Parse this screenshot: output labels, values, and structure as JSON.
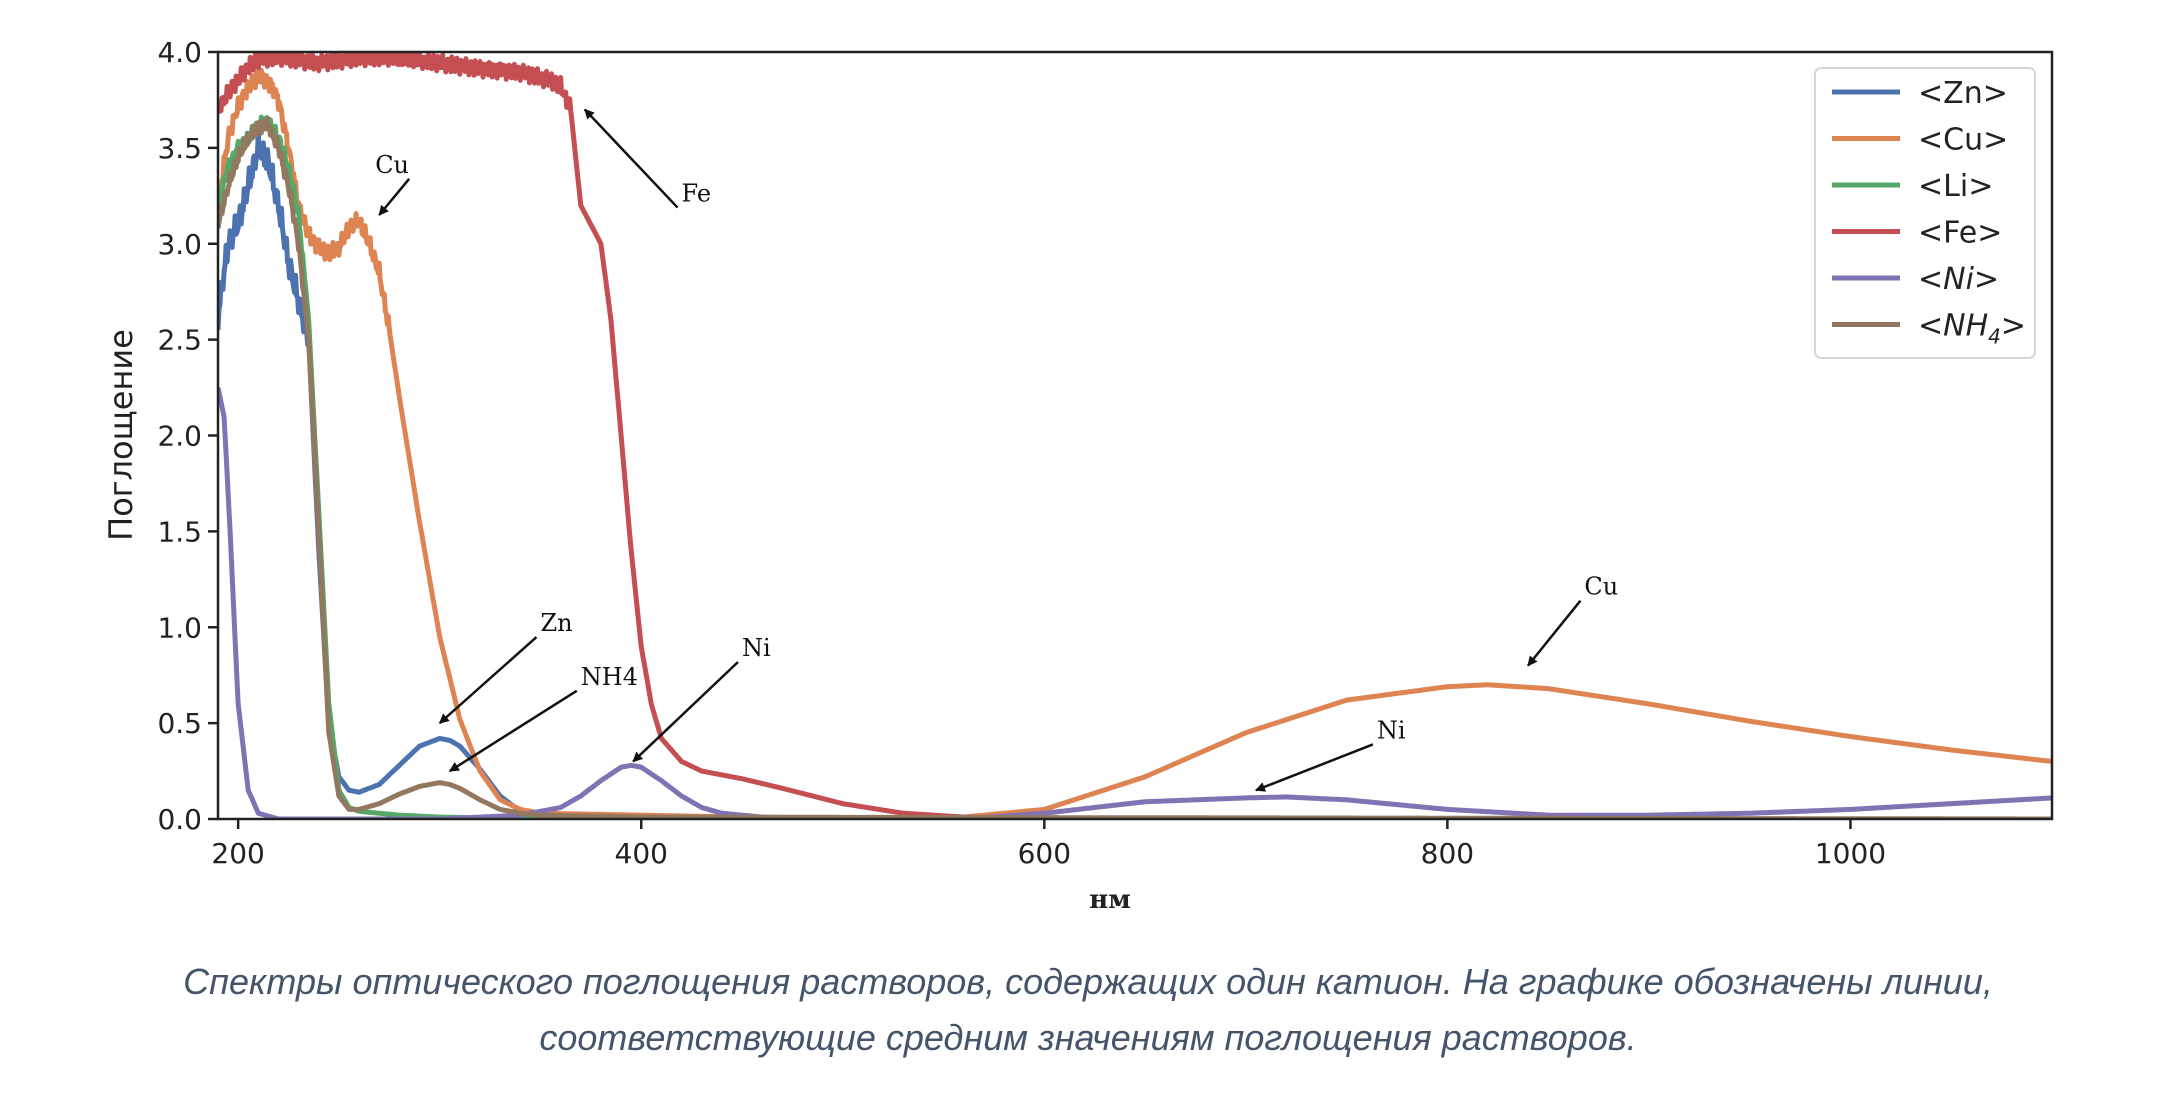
{
  "chart_data": {
    "type": "line",
    "title": "",
    "xlabel": "нм",
    "ylabel": "Поглощение",
    "xlim": [
      190,
      1100
    ],
    "ylim": [
      0,
      4.0
    ],
    "xticks": [
      200,
      400,
      600,
      800,
      1000
    ],
    "yticks": [
      0.0,
      0.5,
      1.0,
      1.5,
      2.0,
      2.5,
      3.0,
      3.5,
      4.0
    ],
    "ytick_labels": [
      "0.0",
      "0.5",
      "1.0",
      "1.5",
      "2.0",
      "2.5",
      "3.0",
      "3.5",
      "4.0"
    ],
    "grid": false,
    "legend": "top-right",
    "series": [
      {
        "name": "<Zn>",
        "legend_main": "Zn",
        "legend_sub": "",
        "italic": false,
        "color": "#4c72b0",
        "noise": {
          "amp": 0.08,
          "from": 190,
          "to": 235
        },
        "points": [
          [
            190,
            2.62
          ],
          [
            195,
            3.0
          ],
          [
            200,
            3.1
          ],
          [
            205,
            3.3
          ],
          [
            210,
            3.5
          ],
          [
            215,
            3.42
          ],
          [
            220,
            3.2
          ],
          [
            225,
            2.9
          ],
          [
            230,
            2.7
          ],
          [
            235,
            2.5
          ],
          [
            240,
            1.4
          ],
          [
            245,
            0.5
          ],
          [
            250,
            0.22
          ],
          [
            255,
            0.15
          ],
          [
            260,
            0.14
          ],
          [
            270,
            0.18
          ],
          [
            280,
            0.28
          ],
          [
            290,
            0.38
          ],
          [
            300,
            0.42
          ],
          [
            305,
            0.41
          ],
          [
            310,
            0.38
          ],
          [
            320,
            0.26
          ],
          [
            330,
            0.12
          ],
          [
            340,
            0.04
          ],
          [
            350,
            0.01
          ],
          [
            360,
            0.0
          ],
          [
            1100,
            0.0
          ]
        ]
      },
      {
        "name": "<Cu>",
        "legend_main": "Cu",
        "legend_sub": "",
        "italic": false,
        "color": "#dd8452",
        "noise": {
          "amp": 0.05,
          "from": 190,
          "to": 275
        },
        "points": [
          [
            190,
            3.2
          ],
          [
            195,
            3.55
          ],
          [
            200,
            3.72
          ],
          [
            205,
            3.82
          ],
          [
            210,
            3.88
          ],
          [
            215,
            3.85
          ],
          [
            220,
            3.75
          ],
          [
            225,
            3.5
          ],
          [
            230,
            3.2
          ],
          [
            235,
            3.05
          ],
          [
            240,
            2.98
          ],
          [
            245,
            2.95
          ],
          [
            250,
            2.98
          ],
          [
            255,
            3.08
          ],
          [
            260,
            3.12
          ],
          [
            265,
            3.0
          ],
          [
            270,
            2.85
          ],
          [
            275,
            2.55
          ],
          [
            280,
            2.2
          ],
          [
            290,
            1.55
          ],
          [
            300,
            0.95
          ],
          [
            310,
            0.52
          ],
          [
            320,
            0.25
          ],
          [
            330,
            0.1
          ],
          [
            340,
            0.05
          ],
          [
            350,
            0.03
          ],
          [
            400,
            0.02
          ],
          [
            450,
            0.01
          ],
          [
            500,
            0.0
          ],
          [
            550,
            0.0
          ],
          [
            600,
            0.05
          ],
          [
            650,
            0.22
          ],
          [
            700,
            0.45
          ],
          [
            750,
            0.62
          ],
          [
            800,
            0.69
          ],
          [
            820,
            0.7
          ],
          [
            850,
            0.68
          ],
          [
            900,
            0.6
          ],
          [
            950,
            0.51
          ],
          [
            1000,
            0.43
          ],
          [
            1050,
            0.36
          ],
          [
            1100,
            0.3
          ]
        ]
      },
      {
        "name": "<Li>",
        "legend_main": "Li",
        "legend_sub": "",
        "italic": false,
        "color": "#55a868",
        "noise": {
          "amp": 0.04,
          "from": 190,
          "to": 232
        },
        "points": [
          [
            190,
            3.2
          ],
          [
            195,
            3.4
          ],
          [
            200,
            3.5
          ],
          [
            205,
            3.55
          ],
          [
            210,
            3.62
          ],
          [
            215,
            3.63
          ],
          [
            220,
            3.55
          ],
          [
            225,
            3.4
          ],
          [
            230,
            3.15
          ],
          [
            235,
            2.6
          ],
          [
            240,
            1.6
          ],
          [
            245,
            0.6
          ],
          [
            250,
            0.15
          ],
          [
            255,
            0.06
          ],
          [
            260,
            0.04
          ],
          [
            270,
            0.03
          ],
          [
            280,
            0.02
          ],
          [
            300,
            0.01
          ],
          [
            350,
            0.0
          ],
          [
            1100,
            0.0
          ]
        ]
      },
      {
        "name": "<Fe>",
        "legend_main": "Fe",
        "legend_sub": "",
        "italic": false,
        "color": "#c44e52",
        "noise": {
          "amp": 0.05,
          "from": 190,
          "to": 365
        },
        "points": [
          [
            190,
            3.7
          ],
          [
            195,
            3.78
          ],
          [
            200,
            3.85
          ],
          [
            205,
            3.92
          ],
          [
            210,
            3.96
          ],
          [
            220,
            3.98
          ],
          [
            240,
            3.95
          ],
          [
            260,
            3.97
          ],
          [
            280,
            3.96
          ],
          [
            300,
            3.94
          ],
          [
            320,
            3.92
          ],
          [
            340,
            3.9
          ],
          [
            355,
            3.85
          ],
          [
            360,
            3.82
          ],
          [
            365,
            3.7
          ],
          [
            370,
            3.2
          ],
          [
            375,
            3.1
          ],
          [
            380,
            3.0
          ],
          [
            385,
            2.6
          ],
          [
            390,
            2.0
          ],
          [
            395,
            1.4
          ],
          [
            400,
            0.9
          ],
          [
            405,
            0.6
          ],
          [
            410,
            0.42
          ],
          [
            420,
            0.3
          ],
          [
            430,
            0.25
          ],
          [
            440,
            0.23
          ],
          [
            450,
            0.21
          ],
          [
            470,
            0.16
          ],
          [
            500,
            0.08
          ],
          [
            530,
            0.03
          ],
          [
            560,
            0.01
          ],
          [
            600,
            0.0
          ],
          [
            1100,
            0.0
          ]
        ]
      },
      {
        "name": "<Ni>",
        "legend_main": "Ni",
        "legend_sub": "",
        "italic": true,
        "color": "#8172b3",
        "noise": {
          "amp": 0.0,
          "from": 0,
          "to": 0
        },
        "points": [
          [
            190,
            2.25
          ],
          [
            193,
            2.1
          ],
          [
            196,
            1.5
          ],
          [
            200,
            0.6
          ],
          [
            205,
            0.15
          ],
          [
            210,
            0.03
          ],
          [
            220,
            0.0
          ],
          [
            300,
            0.0
          ],
          [
            340,
            0.02
          ],
          [
            360,
            0.06
          ],
          [
            370,
            0.12
          ],
          [
            380,
            0.2
          ],
          [
            390,
            0.27
          ],
          [
            395,
            0.28
          ],
          [
            400,
            0.27
          ],
          [
            410,
            0.2
          ],
          [
            420,
            0.12
          ],
          [
            430,
            0.06
          ],
          [
            440,
            0.03
          ],
          [
            460,
            0.01
          ],
          [
            500,
            0.0
          ],
          [
            560,
            0.0
          ],
          [
            600,
            0.03
          ],
          [
            650,
            0.09
          ],
          [
            700,
            0.11
          ],
          [
            720,
            0.115
          ],
          [
            750,
            0.1
          ],
          [
            800,
            0.05
          ],
          [
            850,
            0.02
          ],
          [
            900,
            0.02
          ],
          [
            950,
            0.03
          ],
          [
            1000,
            0.05
          ],
          [
            1050,
            0.08
          ],
          [
            1100,
            0.11
          ]
        ]
      },
      {
        "name": "<NH4>",
        "legend_main": "NH",
        "legend_sub": "4",
        "italic": true,
        "color": "#937860",
        "noise": {
          "amp": 0.04,
          "from": 190,
          "to": 232
        },
        "points": [
          [
            190,
            3.1
          ],
          [
            195,
            3.3
          ],
          [
            200,
            3.45
          ],
          [
            205,
            3.55
          ],
          [
            210,
            3.6
          ],
          [
            215,
            3.62
          ],
          [
            220,
            3.5
          ],
          [
            225,
            3.3
          ],
          [
            230,
            3.0
          ],
          [
            235,
            2.5
          ],
          [
            240,
            1.5
          ],
          [
            245,
            0.45
          ],
          [
            250,
            0.12
          ],
          [
            255,
            0.05
          ],
          [
            260,
            0.05
          ],
          [
            270,
            0.08
          ],
          [
            280,
            0.13
          ],
          [
            290,
            0.17
          ],
          [
            300,
            0.19
          ],
          [
            305,
            0.18
          ],
          [
            310,
            0.16
          ],
          [
            320,
            0.1
          ],
          [
            330,
            0.05
          ],
          [
            340,
            0.03
          ],
          [
            350,
            0.02
          ],
          [
            400,
            0.01
          ],
          [
            1100,
            0.0
          ]
        ]
      }
    ],
    "annotations": [
      {
        "label": "Cu",
        "text_at": [
          268,
          3.37
        ],
        "arrow_to": [
          270,
          3.15
        ]
      },
      {
        "label": "Fe",
        "text_at": [
          420,
          3.22
        ],
        "arrow_to": [
          372,
          3.7
        ]
      },
      {
        "label": "Zn",
        "text_at": [
          350,
          0.98
        ],
        "arrow_to": [
          300,
          0.5
        ]
      },
      {
        "label": "NH4",
        "text_at": [
          370,
          0.7
        ],
        "arrow_to": [
          305,
          0.25
        ]
      },
      {
        "label": "Ni",
        "text_at": [
          450,
          0.85
        ],
        "arrow_to": [
          396,
          0.3
        ]
      },
      {
        "label": "Cu",
        "text_at": [
          868,
          1.17
        ],
        "arrow_to": [
          840,
          0.8
        ]
      },
      {
        "label": "Ni",
        "text_at": [
          765,
          0.42
        ],
        "arrow_to": [
          705,
          0.15
        ]
      }
    ]
  },
  "caption": {
    "line1": "Спектры оптического поглощения растворов, содержащих один катион. На графике обозначены линии,",
    "line2": "соответствующие средним значениям поглощения растворов."
  }
}
